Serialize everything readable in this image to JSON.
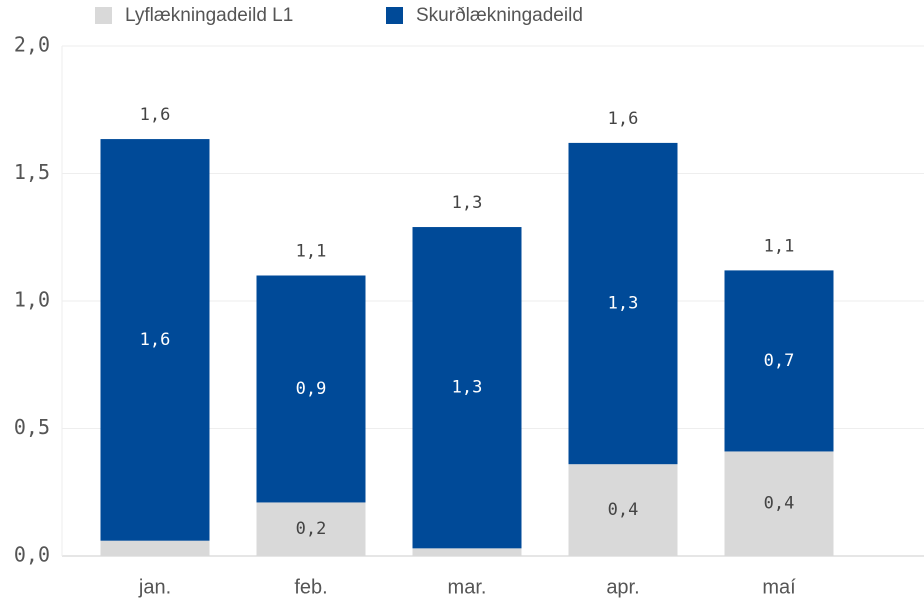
{
  "chart_data": {
    "type": "stacked_bar",
    "categories": [
      "jan.",
      "feb.",
      "mar.",
      "apr.",
      "maí"
    ],
    "series": [
      {
        "name": "Lyflækningadeild L1",
        "color": "#d9d9d9",
        "values": [
          0.06,
          0.21,
          0.03,
          0.36,
          0.41
        ],
        "value_labels": [
          null,
          "0,2",
          null,
          "0,4",
          "0,4"
        ]
      },
      {
        "name": "Skurðlækningadeild",
        "color": "#004a98",
        "values": [
          1.575,
          0.89,
          1.26,
          1.26,
          0.71
        ],
        "value_labels": [
          "1,6",
          "0,9",
          "1,3",
          "1,3",
          "0,7"
        ]
      }
    ],
    "total_labels": [
      "1,6",
      "1,1",
      "1,3",
      "1,6",
      "1,1"
    ],
    "ylim": [
      0,
      2
    ],
    "yticks": [
      {
        "value": 0,
        "label": "0,0"
      },
      {
        "value": 0.5,
        "label": "0,5"
      },
      {
        "value": 1,
        "label": "1,0"
      },
      {
        "value": 1.5,
        "label": "1,5"
      },
      {
        "value": 2,
        "label": "2,0"
      }
    ],
    "grid": true
  }
}
